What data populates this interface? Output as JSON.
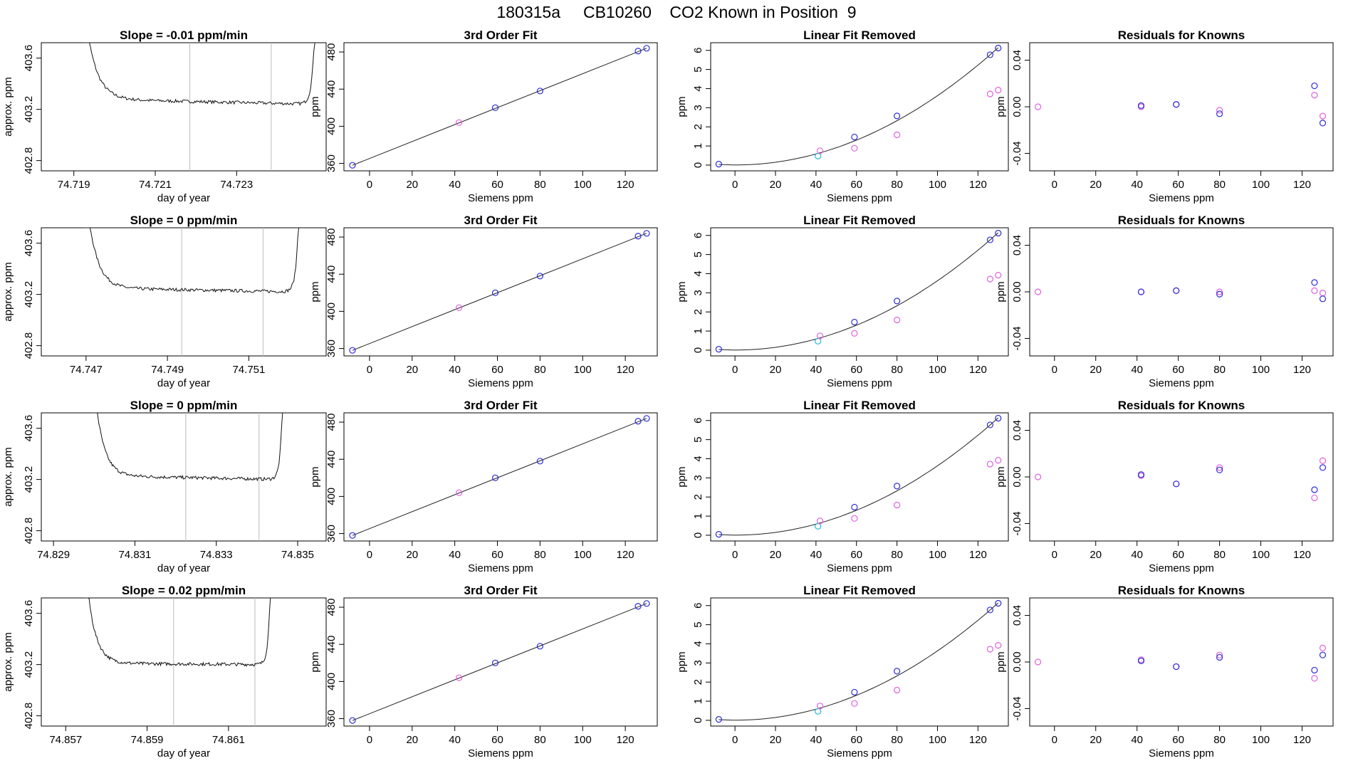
{
  "title": "180315a     CB10260    CO2 Known in Position  9",
  "colors": {
    "axis": "#000000",
    "fit_line": "#222222",
    "vline": "#bbbbbb",
    "blue": "#2b2bd6",
    "magenta": "#e060e0",
    "cyan": "#20b8e0"
  },
  "chart_data": [
    {
      "type": "line",
      "title": "Slope =  -0.01  ppm/min",
      "xlabel": "day of year",
      "ylabel": "approx. ppm",
      "xlim": [
        74.7182,
        74.7252
      ],
      "ylim": [
        402.72,
        403.72
      ],
      "xticks": [
        "74.719",
        "74.721",
        "74.723"
      ],
      "yticks": [
        "402.8",
        "403.2",
        "403.6"
      ],
      "start": 74.7192,
      "level_start": 403.28,
      "level_end": 403.24,
      "end": 74.72495,
      "vlines": [
        74.72185,
        74.72385
      ]
    },
    {
      "type": "scatter",
      "title": "3rd Order Fit",
      "xlabel": "Siemens ppm",
      "ylabel": "ppm",
      "xlim": [
        -12,
        135
      ],
      "ylim": [
        352,
        490
      ],
      "xticks": [
        "0",
        "20",
        "40",
        "60",
        "80",
        "100",
        "120"
      ],
      "yticks": [
        "360",
        "400",
        "440",
        "480"
      ],
      "fit": "linear",
      "x": [
        -8,
        42,
        59,
        80,
        126,
        130
      ],
      "y": [
        358,
        404,
        420,
        438,
        481,
        484
      ],
      "colors": [
        "blue",
        "magenta",
        "blue",
        "blue",
        "blue",
        "blue"
      ]
    },
    {
      "type": "scatter",
      "title": "Linear Fit Removed",
      "xlabel": "Siemens ppm",
      "ylabel": "ppm",
      "xlim": [
        -12,
        135
      ],
      "ylim": [
        -0.3,
        6.4
      ],
      "xticks": [
        "0",
        "20",
        "40",
        "60",
        "80",
        "100",
        "120"
      ],
      "yticks": [
        "0",
        "1",
        "2",
        "3",
        "4",
        "5",
        "6"
      ],
      "fit": "curve",
      "x": [
        -8,
        41,
        42,
        59,
        59,
        80,
        80,
        126,
        126,
        130,
        130
      ],
      "y": [
        0.05,
        0.47,
        0.75,
        0.88,
        1.47,
        1.58,
        2.57,
        3.72,
        5.77,
        3.92,
        6.12
      ],
      "colors": [
        "blue",
        "cyan",
        "magenta",
        "magenta",
        "blue",
        "magenta",
        "blue",
        "magenta",
        "blue",
        "magenta",
        "blue"
      ]
    },
    {
      "type": "scatter",
      "title": "Residuals for Knowns",
      "xlabel": "Siemens ppm",
      "ylabel": "ppm",
      "xlim": [
        -12,
        135
      ],
      "ylim": [
        -0.055,
        0.055
      ],
      "xticks": [
        "0",
        "20",
        "40",
        "60",
        "80",
        "100",
        "120"
      ],
      "yticks": [
        "-0.04",
        "0.00",
        "0.04"
      ],
      "x": [
        -8,
        42,
        42,
        59,
        59,
        80,
        80,
        126,
        126,
        130,
        130
      ],
      "y": [
        0.0,
        0.0,
        0.001,
        0.002,
        0.002,
        -0.003,
        -0.006,
        0.01,
        0.018,
        -0.008,
        -0.014
      ],
      "colors": [
        "magenta",
        "magenta",
        "blue",
        "magenta",
        "blue",
        "magenta",
        "blue",
        "magenta",
        "blue",
        "magenta",
        "blue"
      ]
    },
    {
      "type": "line",
      "title": "Slope =  0  ppm/min",
      "xlabel": "day of year",
      "ylabel": "approx. ppm",
      "xlim": [
        74.7459,
        74.7529
      ],
      "ylim": [
        402.72,
        403.72
      ],
      "xticks": [
        "74.747",
        "74.749",
        "74.751"
      ],
      "yticks": [
        "402.8",
        "403.2",
        "403.6"
      ],
      "start": 74.74695,
      "level_start": 403.25,
      "level_end": 403.22,
      "end": 74.75225,
      "vlines": [
        74.74935,
        74.75135
      ]
    },
    {
      "type": "scatter",
      "title": "3rd Order Fit",
      "xlabel": "Siemens ppm",
      "ylabel": "ppm",
      "xlim": [
        -12,
        135
      ],
      "ylim": [
        352,
        490
      ],
      "xticks": [
        "0",
        "20",
        "40",
        "60",
        "80",
        "100",
        "120"
      ],
      "yticks": [
        "360",
        "400",
        "440",
        "480"
      ],
      "fit": "linear",
      "x": [
        -8,
        42,
        59,
        80,
        126,
        130
      ],
      "y": [
        358,
        404,
        420,
        438,
        481,
        484
      ],
      "colors": [
        "blue",
        "magenta",
        "blue",
        "blue",
        "blue",
        "blue"
      ]
    },
    {
      "type": "scatter",
      "title": "Linear Fit Removed",
      "xlabel": "Siemens ppm",
      "ylabel": "ppm",
      "xlim": [
        -12,
        135
      ],
      "ylim": [
        -0.3,
        6.4
      ],
      "xticks": [
        "0",
        "20",
        "40",
        "60",
        "80",
        "100",
        "120"
      ],
      "yticks": [
        "0",
        "1",
        "2",
        "3",
        "4",
        "5",
        "6"
      ],
      "fit": "curve",
      "x": [
        -8,
        41,
        42,
        59,
        59,
        80,
        80,
        126,
        126,
        130,
        130
      ],
      "y": [
        0.05,
        0.47,
        0.75,
        0.88,
        1.47,
        1.58,
        2.57,
        3.72,
        5.77,
        3.92,
        6.12
      ],
      "colors": [
        "blue",
        "cyan",
        "magenta",
        "magenta",
        "blue",
        "magenta",
        "blue",
        "magenta",
        "blue",
        "magenta",
        "blue"
      ]
    },
    {
      "type": "scatter",
      "title": "Residuals for Knowns",
      "xlabel": "Siemens ppm",
      "ylabel": "ppm",
      "xlim": [
        -12,
        135
      ],
      "ylim": [
        -0.055,
        0.055
      ],
      "xticks": [
        "0",
        "20",
        "40",
        "60",
        "80",
        "100",
        "120"
      ],
      "yticks": [
        "-0.04",
        "0.00",
        "0.04"
      ],
      "x": [
        -8,
        42,
        42,
        59,
        59,
        80,
        80,
        126,
        126,
        130,
        130
      ],
      "y": [
        0.0,
        0.0,
        0.0,
        0.001,
        0.001,
        0.0,
        -0.002,
        0.001,
        0.008,
        -0.001,
        -0.006
      ],
      "colors": [
        "magenta",
        "magenta",
        "blue",
        "magenta",
        "blue",
        "magenta",
        "blue",
        "magenta",
        "blue",
        "magenta",
        "blue"
      ]
    },
    {
      "type": "line",
      "title": "Slope =  0  ppm/min",
      "xlabel": "day of year",
      "ylabel": "approx. ppm",
      "xlim": [
        74.8287,
        74.8357
      ],
      "ylim": [
        402.72,
        403.72
      ],
      "xticks": [
        "74.829",
        "74.831",
        "74.833",
        "74.835"
      ],
      "yticks": [
        "402.8",
        "403.2",
        "403.6"
      ],
      "start": 74.82995,
      "level_start": 403.23,
      "level_end": 403.2,
      "end": 74.83465,
      "vlines": [
        74.83225,
        74.83405
      ]
    },
    {
      "type": "scatter",
      "title": "3rd Order Fit",
      "xlabel": "Siemens ppm",
      "ylabel": "ppm",
      "xlim": [
        -12,
        135
      ],
      "ylim": [
        352,
        490
      ],
      "xticks": [
        "0",
        "20",
        "40",
        "60",
        "80",
        "100",
        "120"
      ],
      "yticks": [
        "360",
        "400",
        "440",
        "480"
      ],
      "fit": "linear",
      "x": [
        -8,
        42,
        59,
        80,
        126,
        130
      ],
      "y": [
        358,
        404,
        420,
        438,
        481,
        484
      ],
      "colors": [
        "blue",
        "magenta",
        "blue",
        "blue",
        "blue",
        "blue"
      ]
    },
    {
      "type": "scatter",
      "title": "Linear Fit Removed",
      "xlabel": "Siemens ppm",
      "ylabel": "ppm",
      "xlim": [
        -12,
        135
      ],
      "ylim": [
        -0.3,
        6.4
      ],
      "xticks": [
        "0",
        "20",
        "40",
        "60",
        "80",
        "100",
        "120"
      ],
      "yticks": [
        "0",
        "1",
        "2",
        "3",
        "4",
        "5",
        "6"
      ],
      "fit": "curve",
      "x": [
        -8,
        41,
        42,
        59,
        59,
        80,
        80,
        126,
        126,
        130,
        130
      ],
      "y": [
        0.05,
        0.47,
        0.75,
        0.88,
        1.47,
        1.58,
        2.57,
        3.72,
        5.77,
        3.92,
        6.12
      ],
      "colors": [
        "blue",
        "cyan",
        "magenta",
        "magenta",
        "blue",
        "magenta",
        "blue",
        "magenta",
        "blue",
        "magenta",
        "blue"
      ]
    },
    {
      "type": "scatter",
      "title": "Residuals for Knowns",
      "xlabel": "Siemens ppm",
      "ylabel": "ppm",
      "xlim": [
        -12,
        135
      ],
      "ylim": [
        -0.055,
        0.055
      ],
      "xticks": [
        "0",
        "20",
        "40",
        "60",
        "80",
        "100",
        "120"
      ],
      "yticks": [
        "-0.04",
        "0.00",
        "0.04"
      ],
      "x": [
        -8,
        42,
        42,
        59,
        59,
        80,
        80,
        126,
        126,
        130,
        130
      ],
      "y": [
        0.0,
        0.001,
        0.002,
        -0.006,
        -0.006,
        0.008,
        0.006,
        -0.018,
        -0.011,
        0.014,
        0.008
      ],
      "colors": [
        "magenta",
        "magenta",
        "blue",
        "magenta",
        "blue",
        "magenta",
        "blue",
        "magenta",
        "blue",
        "magenta",
        "blue"
      ]
    },
    {
      "type": "line",
      "title": "Slope =  0.02  ppm/min",
      "xlabel": "day of year",
      "ylabel": "approx. ppm",
      "xlim": [
        74.8564,
        74.8634
      ],
      "ylim": [
        402.72,
        403.72
      ],
      "xticks": [
        "74.857",
        "74.859",
        "74.861"
      ],
      "yticks": [
        "402.8",
        "403.2",
        "403.6"
      ],
      "start": 74.85745,
      "level_start": 403.21,
      "level_end": 403.2,
      "end": 74.86205,
      "vlines": [
        74.85965,
        74.86165
      ]
    },
    {
      "type": "scatter",
      "title": "3rd Order Fit",
      "xlabel": "Siemens ppm",
      "ylabel": "ppm",
      "xlim": [
        -12,
        135
      ],
      "ylim": [
        352,
        490
      ],
      "xticks": [
        "0",
        "20",
        "40",
        "60",
        "80",
        "100",
        "120"
      ],
      "yticks": [
        "360",
        "400",
        "440",
        "480"
      ],
      "fit": "linear",
      "x": [
        -8,
        42,
        59,
        80,
        126,
        130
      ],
      "y": [
        358,
        404,
        420,
        438,
        481,
        484
      ],
      "colors": [
        "blue",
        "magenta",
        "blue",
        "blue",
        "blue",
        "blue"
      ]
    },
    {
      "type": "scatter",
      "title": "Linear Fit Removed",
      "xlabel": "Siemens ppm",
      "ylabel": "ppm",
      "xlim": [
        -12,
        135
      ],
      "ylim": [
        -0.3,
        6.4
      ],
      "xticks": [
        "0",
        "20",
        "40",
        "60",
        "80",
        "100",
        "120"
      ],
      "yticks": [
        "0",
        "1",
        "2",
        "3",
        "4",
        "5",
        "6"
      ],
      "fit": "curve",
      "x": [
        -8,
        41,
        42,
        59,
        59,
        80,
        80,
        126,
        126,
        130,
        130
      ],
      "y": [
        0.05,
        0.47,
        0.75,
        0.88,
        1.47,
        1.58,
        2.57,
        3.72,
        5.77,
        3.92,
        6.12
      ],
      "colors": [
        "blue",
        "cyan",
        "magenta",
        "magenta",
        "blue",
        "magenta",
        "blue",
        "magenta",
        "blue",
        "magenta",
        "blue"
      ]
    },
    {
      "type": "scatter",
      "title": "Residuals for Knowns",
      "xlabel": "Siemens ppm",
      "ylabel": "ppm",
      "xlim": [
        -12,
        135
      ],
      "ylim": [
        -0.055,
        0.055
      ],
      "xticks": [
        "0",
        "20",
        "40",
        "60",
        "80",
        "100",
        "120"
      ],
      "yticks": [
        "-0.04",
        "0.00",
        "0.04"
      ],
      "x": [
        -8,
        42,
        42,
        59,
        59,
        80,
        80,
        126,
        126,
        130,
        130
      ],
      "y": [
        0.0,
        0.002,
        0.001,
        -0.004,
        -0.004,
        0.006,
        0.004,
        -0.014,
        -0.007,
        0.012,
        0.006
      ],
      "colors": [
        "magenta",
        "magenta",
        "blue",
        "magenta",
        "blue",
        "magenta",
        "blue",
        "magenta",
        "blue",
        "magenta",
        "blue"
      ]
    }
  ]
}
